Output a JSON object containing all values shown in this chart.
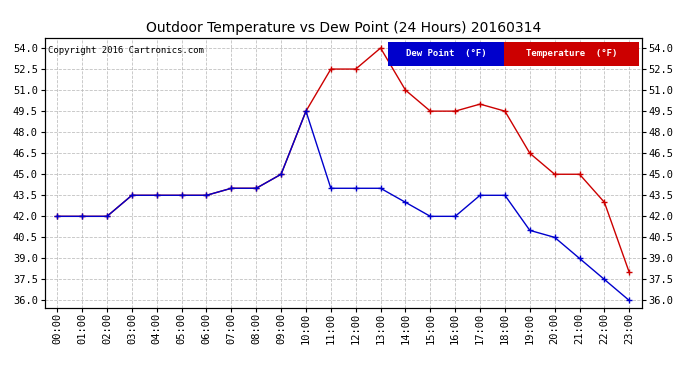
{
  "title": "Outdoor Temperature vs Dew Point (24 Hours) 20160314",
  "copyright": "Copyright 2016 Cartronics.com",
  "hours": [
    "00:00",
    "01:00",
    "02:00",
    "03:00",
    "04:00",
    "05:00",
    "06:00",
    "07:00",
    "08:00",
    "09:00",
    "10:00",
    "11:00",
    "12:00",
    "13:00",
    "14:00",
    "15:00",
    "16:00",
    "17:00",
    "18:00",
    "19:00",
    "20:00",
    "21:00",
    "22:00",
    "23:00"
  ],
  "temperature": [
    42.0,
    42.0,
    42.0,
    43.5,
    43.5,
    43.5,
    43.5,
    44.0,
    44.0,
    45.0,
    49.5,
    52.5,
    52.5,
    54.0,
    51.0,
    49.5,
    49.5,
    50.0,
    49.5,
    46.5,
    45.0,
    45.0,
    43.0,
    38.0
  ],
  "dew_point": [
    42.0,
    42.0,
    42.0,
    43.5,
    43.5,
    43.5,
    43.5,
    44.0,
    44.0,
    45.0,
    49.5,
    44.0,
    44.0,
    44.0,
    43.0,
    42.0,
    42.0,
    43.5,
    43.5,
    41.0,
    40.5,
    39.0,
    37.5,
    36.0
  ],
  "ylim": [
    35.5,
    54.75
  ],
  "yticks": [
    36.0,
    37.5,
    39.0,
    40.5,
    42.0,
    43.5,
    45.0,
    46.5,
    48.0,
    49.5,
    51.0,
    52.5,
    54.0
  ],
  "temp_color": "#cc0000",
  "dew_color": "#0000cc",
  "bg_color": "#ffffff",
  "grid_color": "#bbbbbb",
  "legend_dew_bg": "#0000cc",
  "legend_temp_bg": "#cc0000",
  "title_fontsize": 10,
  "tick_fontsize": 7.5
}
